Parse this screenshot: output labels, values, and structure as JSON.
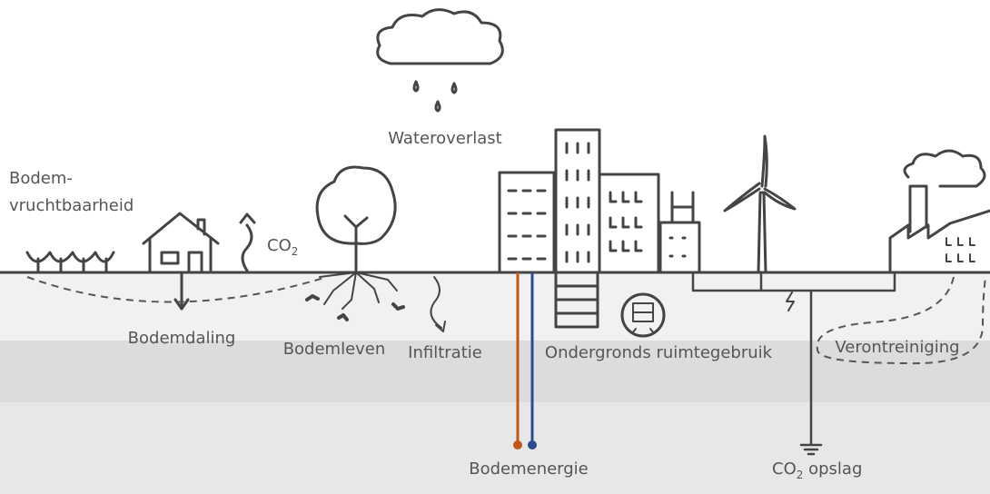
{
  "labels": {
    "wateroverlast": "Wateroverlast",
    "bodemvruchtbaarheid": [
      "Bodem-",
      "vruchtbaarheid"
    ],
    "co2": {
      "main": "CO",
      "sub": "2"
    },
    "bodemdaling": "Bodemdaling",
    "bodemleven": "Bodemleven",
    "infiltratie": "Infiltratie",
    "ondergronds": "Ondergronds ruimtegebruik",
    "verontreiniging": "Verontreiniging",
    "bodemenergie": "Bodemenergie",
    "co2_opslag": {
      "main": "CO",
      "sub": "2",
      "rest": " opslag"
    }
  }
}
